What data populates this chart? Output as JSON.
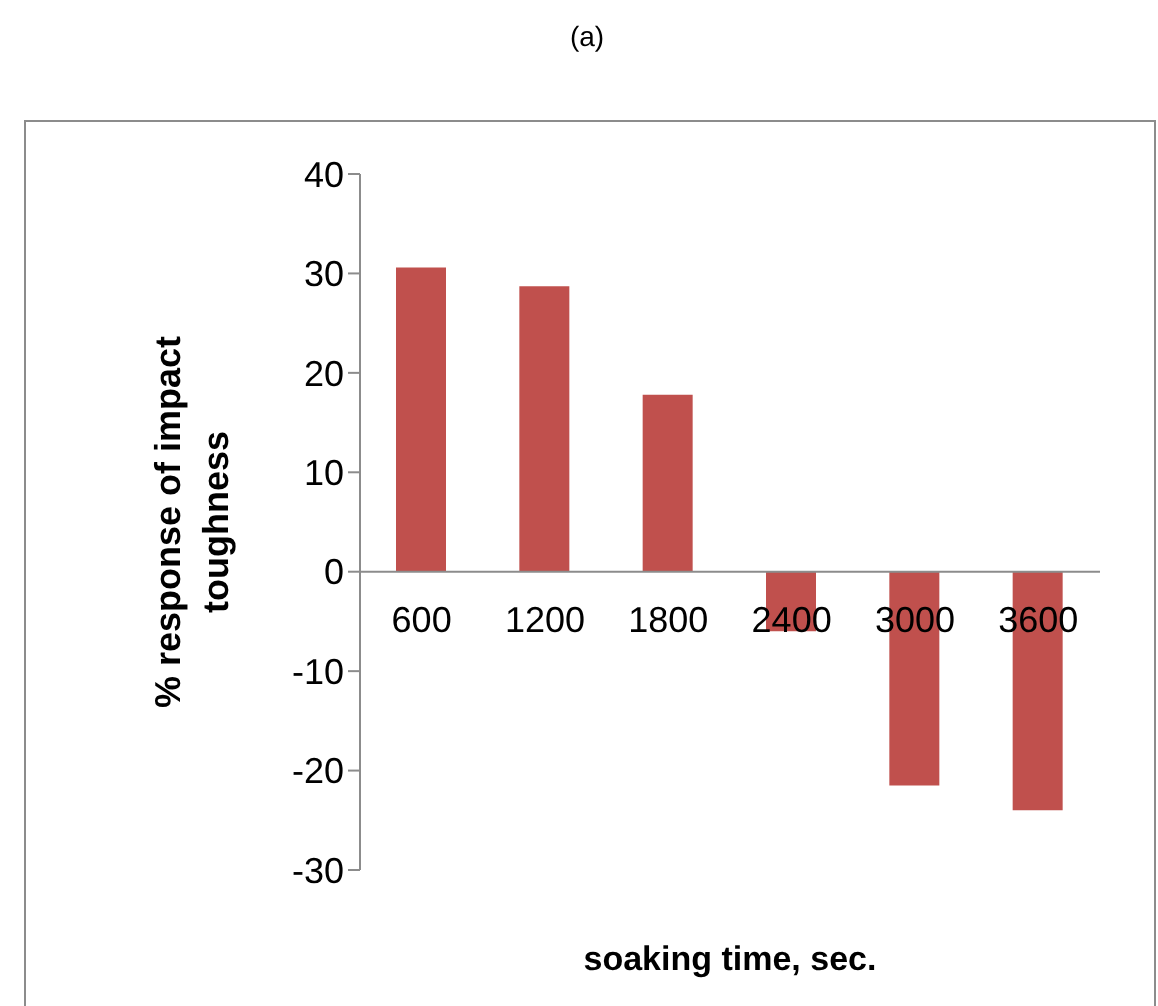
{
  "chart_data": {
    "type": "bar",
    "title": "(a)",
    "xlabel": "soaking time, sec.",
    "ylabel": "% response of impact toughness",
    "categories": [
      "600",
      "1200",
      "1800",
      "2400",
      "3000",
      "3600"
    ],
    "values": [
      30.6,
      28.7,
      17.8,
      -6,
      -21.5,
      -24
    ],
    "color": "#c0504d",
    "ylim": [
      -30,
      40
    ],
    "yticks": [
      -30,
      -20,
      -10,
      0,
      10,
      20,
      30,
      40
    ],
    "grid": false,
    "legend": false
  }
}
